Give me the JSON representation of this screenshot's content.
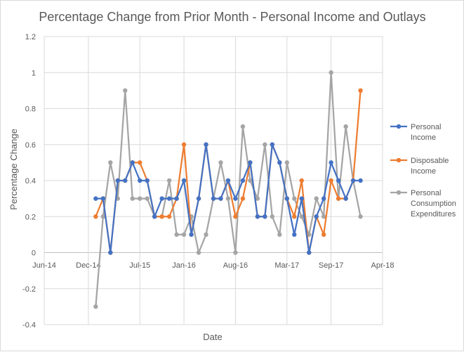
{
  "chart_data": {
    "type": "line",
    "title": "Percentage Change from Prior Month - Personal Income and Outlays",
    "xlabel": "Date",
    "ylabel": "Percentage Change",
    "ylim": [
      -0.4,
      1.2
    ],
    "yticks": [
      "1.2",
      "1",
      "0.8",
      "0.6",
      "0.4",
      "0.2",
      "0",
      "-0.2",
      "-0.4"
    ],
    "xtick_labels": [
      "Jun-14",
      "Dec-14",
      "Jul-15",
      "Jan-16",
      "Aug-16",
      "Mar-17",
      "Sep-17",
      "Apr-18"
    ],
    "grid": true,
    "legend_position": "right",
    "x": [
      "2015-01",
      "2015-02",
      "2015-03",
      "2015-04",
      "2015-05",
      "2015-06",
      "2015-07",
      "2015-08",
      "2015-09",
      "2015-10",
      "2015-11",
      "2015-12",
      "2016-01",
      "2016-02",
      "2016-03",
      "2016-04",
      "2016-05",
      "2016-06",
      "2016-07",
      "2016-08",
      "2016-09",
      "2016-10",
      "2016-11",
      "2016-12",
      "2017-01",
      "2017-02",
      "2017-03",
      "2017-04",
      "2017-05",
      "2017-06",
      "2017-07",
      "2017-08",
      "2017-09",
      "2017-10",
      "2017-11",
      "2017-12",
      "2018-01"
    ],
    "series": [
      {
        "name": "Personal Income",
        "color": "#4472c4",
        "values": [
          0.3,
          0.3,
          0.0,
          0.4,
          0.4,
          0.5,
          0.4,
          0.4,
          0.2,
          0.3,
          0.3,
          0.3,
          0.4,
          0.1,
          0.3,
          0.6,
          0.3,
          0.3,
          0.4,
          0.3,
          0.4,
          0.5,
          0.2,
          0.2,
          0.6,
          0.5,
          0.3,
          0.1,
          0.3,
          0.0,
          0.2,
          0.3,
          0.5,
          0.4,
          0.3,
          0.4,
          0.4
        ]
      },
      {
        "name": "Disposable Income",
        "color": "#ed7d31",
        "values": [
          0.2,
          0.3,
          0.0,
          0.4,
          0.4,
          0.5,
          0.5,
          0.4,
          0.2,
          0.2,
          0.2,
          0.3,
          0.6,
          0.1,
          0.3,
          0.6,
          0.3,
          0.3,
          0.4,
          0.2,
          0.3,
          0.5,
          0.2,
          0.2,
          0.6,
          0.5,
          0.3,
          0.2,
          0.4,
          0.0,
          0.2,
          0.1,
          0.4,
          0.3,
          0.3,
          0.4,
          0.9
        ]
      },
      {
        "name": "Personal Consumption Expenditures",
        "color": "#a5a5a5",
        "values": [
          -0.3,
          0.2,
          0.5,
          0.3,
          0.9,
          0.3,
          0.3,
          0.3,
          0.2,
          0.2,
          0.4,
          0.1,
          0.1,
          0.2,
          0.0,
          0.1,
          0.3,
          0.5,
          0.3,
          0.0,
          0.7,
          0.4,
          0.3,
          0.6,
          0.2,
          0.1,
          0.5,
          0.3,
          0.2,
          0.1,
          0.3,
          0.2,
          1.0,
          0.3,
          0.7,
          0.4,
          0.2
        ]
      }
    ],
    "legend_lines": [
      [
        "Personal",
        "Income"
      ],
      [
        "Disposable",
        "Income"
      ],
      [
        "Personal",
        "Consumption",
        "Expenditures"
      ]
    ]
  }
}
